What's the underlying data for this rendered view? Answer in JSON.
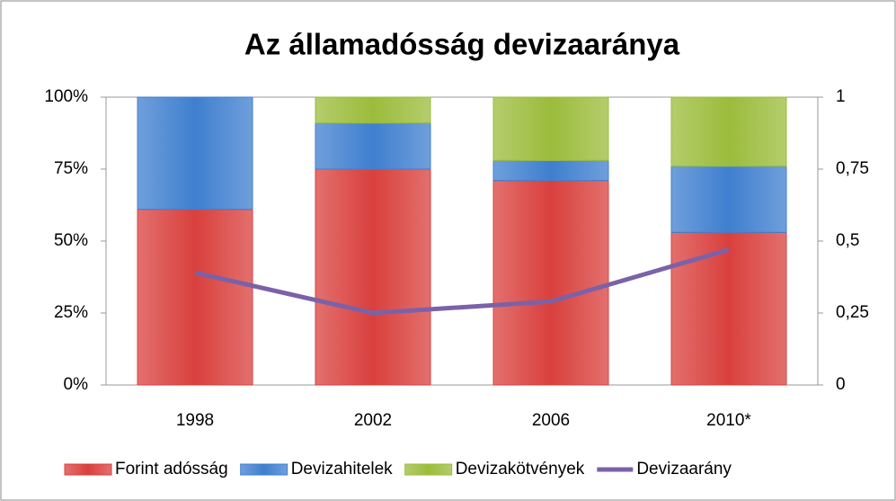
{
  "chart_data": {
    "type": "bar",
    "stacked": true,
    "title": "Az államadósság devizaaránya",
    "categories": [
      "1998",
      "2002",
      "2006",
      "2010*"
    ],
    "series": [
      {
        "name": "Forint adósság",
        "color": "#d9403d",
        "values": [
          61,
          75,
          71,
          53
        ]
      },
      {
        "name": "Devizahitelek",
        "color": "#3f7fcf",
        "values": [
          39,
          16,
          7,
          23
        ]
      },
      {
        "name": "Devizakötvények",
        "color": "#9bbc3b",
        "values": [
          0,
          9,
          22,
          24
        ]
      },
      {
        "name": "Devizaarány",
        "color": "#7b62a8",
        "type": "line",
        "axis": "y2",
        "values": [
          0.39,
          0.25,
          0.29,
          0.47
        ]
      }
    ],
    "ylim": [
      0,
      100
    ],
    "yticks": [
      {
        "value": 0,
        "label": "0%"
      },
      {
        "value": 25,
        "label": "25%"
      },
      {
        "value": 50,
        "label": "50%"
      },
      {
        "value": 75,
        "label": "75%"
      },
      {
        "value": 100,
        "label": "100%"
      }
    ],
    "y2lim": [
      0,
      1
    ],
    "y2ticks": [
      0,
      {
        "value": 0.25,
        "label": "0,25"
      },
      {
        "value": 0.5,
        "label": "0,5"
      },
      {
        "value": 0.75,
        "label": "0,75"
      },
      1
    ],
    "legend": "bottom"
  }
}
